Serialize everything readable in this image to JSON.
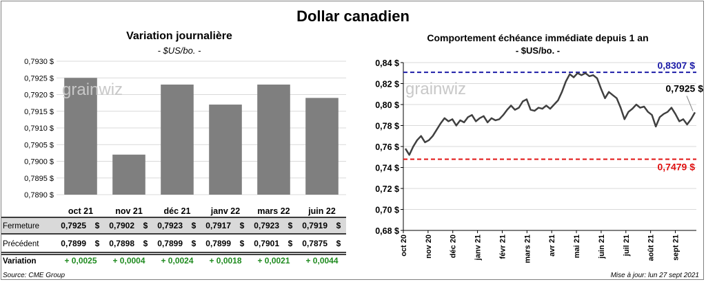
{
  "title": "Dollar canadien",
  "left_panel": {
    "title": "Variation  journalière",
    "subtitle": "- $US/bo. -"
  },
  "right_panel": {
    "title": "Comportement échéance immédiate depuis 1 an",
    "subtitle": "- $US/bo. -"
  },
  "table": {
    "rows": [
      {
        "label": "Fermeture",
        "values": [
          "0,7925",
          "0,7902",
          "0,7923",
          "0,7917",
          "0,7923",
          "0,7919"
        ],
        "unit": "$"
      },
      {
        "label": "Précédent",
        "values": [
          "0,7899",
          "0,7898",
          "0,7899",
          "0,7899",
          "0,7901",
          "0,7875"
        ],
        "unit": "$"
      },
      {
        "label": "Variation",
        "values": [
          "+ 0,0025",
          "+ 0,0004",
          "+ 0,0024",
          "+ 0,0018",
          "+ 0,0021",
          "+ 0,0044"
        ],
        "unit": ""
      }
    ],
    "variation_color": "#1e8a1e",
    "fermeture_bg": "#d9d9d9"
  },
  "footer": {
    "source": "Source: CME Group",
    "update": "Mise à jour: lun 27 sept 2021"
  },
  "watermark": "grainwiz",
  "chart_data": [
    {
      "type": "bar",
      "categories": [
        "oct 21",
        "nov 21",
        "déc 21",
        "janv 22",
        "mars 22",
        "juin 22"
      ],
      "values": [
        0.7925,
        0.7902,
        0.7923,
        0.7917,
        0.7923,
        0.7919
      ],
      "ylim": [
        0.789,
        0.793
      ],
      "yticks": [
        "0,7890 $",
        "0,7895 $",
        "0,7900 $",
        "0,7905 $",
        "0,7910 $",
        "0,7915 $",
        "0,7920 $",
        "0,7925 $",
        "0,7930 $"
      ],
      "bar_color": "#7f7f7f",
      "grid": true
    },
    {
      "type": "line",
      "ylim": [
        0.68,
        0.84
      ],
      "yticks": [
        "0,68 $",
        "0,70 $",
        "0,72 $",
        "0,74 $",
        "0,76 $",
        "0,78 $",
        "0,80 $",
        "0,82 $",
        "0,84 $"
      ],
      "xticks": [
        "oct 20",
        "nov 20",
        "déc 20",
        "janv 21",
        "févr 21",
        "mars 21",
        "avr 21",
        "mai 21",
        "juin 21",
        "juil 21",
        "août 21",
        "sept 21"
      ],
      "series": [
        {
          "values": [
            0.758,
            0.752,
            0.76,
            0.766,
            0.77,
            0.764,
            0.766,
            0.77,
            0.776,
            0.782,
            0.787,
            0.784,
            0.786,
            0.78,
            0.785,
            0.783,
            0.788,
            0.79,
            0.784,
            0.787,
            0.789,
            0.783,
            0.787,
            0.785,
            0.786,
            0.79,
            0.795,
            0.799,
            0.795,
            0.797,
            0.803,
            0.805,
            0.795,
            0.794,
            0.797,
            0.796,
            0.799,
            0.796,
            0.8,
            0.804,
            0.812,
            0.822,
            0.829,
            0.826,
            0.83,
            0.828,
            0.83,
            0.827,
            0.828,
            0.825,
            0.815,
            0.806,
            0.812,
            0.809,
            0.806,
            0.797,
            0.786,
            0.793,
            0.796,
            0.8,
            0.797,
            0.798,
            0.793,
            0.79,
            0.779,
            0.788,
            0.791,
            0.793,
            0.797,
            0.791,
            0.784,
            0.786,
            0.781,
            0.786,
            0.7925
          ],
          "color": "#404040"
        }
      ],
      "hlines": [
        {
          "value": 0.8307,
          "label": "0,8307 $",
          "color": "#1a1aa6"
        },
        {
          "value": 0.7479,
          "label": "0,7479 $",
          "color": "#e01010"
        }
      ],
      "last_label": "0,7925 $"
    }
  ]
}
